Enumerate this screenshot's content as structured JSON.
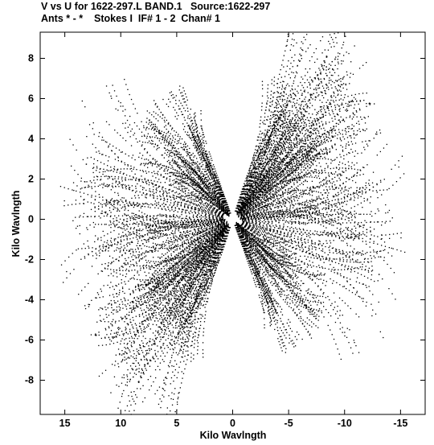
{
  "chart_data": {
    "type": "scatter",
    "title": "V vs U for 1622-297.L BAND.1   Source:1622-297",
    "subtitle": "Ants * - *    Stokes I  IF# 1 - 2  Chan# 1",
    "xlabel": "Kilo Wavlngth",
    "ylabel": "Kilo Wavlngth",
    "xlim": [
      17.2,
      -17.2
    ],
    "ylim": [
      -9.7,
      9.3
    ],
    "x_reversed": true,
    "xticks": [
      15,
      10,
      5,
      0,
      -5,
      -10,
      -15
    ],
    "xtick_labels": [
      "15",
      "10",
      "5",
      "0",
      "-5",
      "-10",
      "-15"
    ],
    "yticks": [
      8,
      6,
      4,
      2,
      0,
      -2,
      -4,
      -6,
      -8
    ],
    "ytick_labels": [
      "8",
      "6",
      "4",
      "2",
      "0",
      "-2",
      "-4",
      "-6",
      "-8"
    ],
    "grid": false,
    "point_color": "#000000",
    "baseline_arm_endpoints": [
      {
        "u": 7.5,
        "v": 6.1
      },
      {
        "u": -10.2,
        "v": 9.0
      },
      {
        "u": -12.0,
        "v": 8.6
      },
      {
        "u": -7.5,
        "v": -6.2
      },
      {
        "u": 10.2,
        "v": -9.0
      },
      {
        "u": 12.0,
        "v": -8.6
      },
      {
        "u": 16.0,
        "v": 0.8
      },
      {
        "u": -16.0,
        "v": -0.8
      },
      {
        "u": 8.5,
        "v": -4.5
      },
      {
        "u": -8.5,
        "v": 4.5
      },
      {
        "u": 14.0,
        "v": 2.2
      },
      {
        "u": -14.0,
        "v": -2.2
      },
      {
        "u": 12.0,
        "v": -3.5
      },
      {
        "u": -12.0,
        "v": 3.5
      },
      {
        "u": 5.0,
        "v": 4.4
      },
      {
        "u": -5.0,
        "v": -4.4
      },
      {
        "u": 6.0,
        "v": -6.0
      },
      {
        "u": -6.0,
        "v": 6.0
      }
    ]
  }
}
